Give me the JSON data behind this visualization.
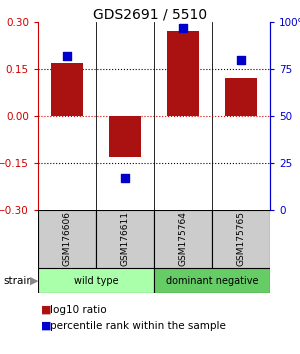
{
  "title": "GDS2691 / 5510",
  "samples": [
    "GSM176606",
    "GSM176611",
    "GSM175764",
    "GSM175765"
  ],
  "log10_ratio": [
    0.17,
    -0.13,
    0.27,
    0.12
  ],
  "percentile_rank": [
    82,
    17,
    97,
    80
  ],
  "bar_color": "#aa1111",
  "dot_color": "#0000cc",
  "ylim_left": [
    -0.3,
    0.3
  ],
  "ylim_right": [
    0,
    100
  ],
  "yticks_left": [
    -0.3,
    -0.15,
    0,
    0.15,
    0.3
  ],
  "yticks_right": [
    0,
    25,
    50,
    75,
    100
  ],
  "ytick_labels_right": [
    "0",
    "25",
    "50",
    "75",
    "100%"
  ],
  "hlines_black_dotted": [
    -0.15,
    0.15
  ],
  "hline_red_dotted": 0,
  "groups": [
    {
      "label": "wild type",
      "samples": [
        0,
        1
      ],
      "color": "#aaffaa"
    },
    {
      "label": "dominant negative",
      "samples": [
        2,
        3
      ],
      "color": "#66cc66"
    }
  ],
  "strain_label": "strain",
  "legend_bar_label": "log10 ratio",
  "legend_dot_label": "percentile rank within the sample",
  "background_color": "#ffffff",
  "label_area_bg": "#cccccc"
}
